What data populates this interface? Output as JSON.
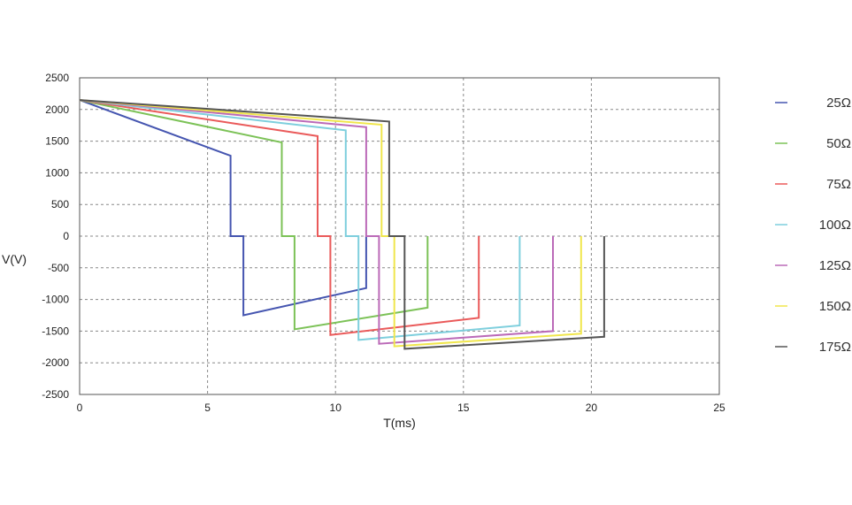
{
  "chart_data": {
    "type": "line",
    "title": "",
    "xlabel": "T(ms)",
    "ylabel": "V(V)",
    "xlim": [
      0,
      25
    ],
    "ylim": [
      -2500,
      2500
    ],
    "x_ticks": [
      "0",
      "5",
      "10",
      "15",
      "20",
      "25"
    ],
    "y_ticks": [
      "2500",
      "2000",
      "1500",
      "1000",
      "500",
      "0",
      "-500",
      "-1000",
      "-1500",
      "-2000",
      "-2500"
    ],
    "grid": true,
    "legend_position": "right",
    "series": [
      {
        "name": "25Ω",
        "color": "#4555b0",
        "x": [
          0,
          5.9,
          5.9,
          6.4,
          6.4,
          11.2,
          11.2
        ],
        "y": [
          2150,
          1270,
          0,
          0,
          -1250,
          -820,
          0
        ]
      },
      {
        "name": "50Ω",
        "color": "#7cc257",
        "x": [
          0,
          7.9,
          7.9,
          8.4,
          8.4,
          13.6,
          13.6
        ],
        "y": [
          2150,
          1480,
          0,
          0,
          -1470,
          -1130,
          0
        ]
      },
      {
        "name": "75Ω",
        "color": "#ea5a5a",
        "x": [
          0,
          9.3,
          9.3,
          9.8,
          9.8,
          15.6,
          15.6
        ],
        "y": [
          2150,
          1580,
          0,
          0,
          -1560,
          -1290,
          0
        ]
      },
      {
        "name": "100Ω",
        "color": "#7ecfdd",
        "x": [
          0,
          10.4,
          10.4,
          10.9,
          10.9,
          17.2,
          17.2
        ],
        "y": [
          2150,
          1670,
          0,
          0,
          -1640,
          -1410,
          0
        ]
      },
      {
        "name": "125Ω",
        "color": "#bb6ab8",
        "x": [
          0,
          11.2,
          11.2,
          11.7,
          11.7,
          18.5,
          18.5
        ],
        "y": [
          2150,
          1720,
          0,
          0,
          -1700,
          -1500,
          0
        ]
      },
      {
        "name": "150Ω",
        "color": "#f0e64c",
        "x": [
          0,
          11.8,
          11.8,
          12.3,
          12.3,
          19.6,
          19.6
        ],
        "y": [
          2150,
          1760,
          0,
          0,
          -1740,
          -1540,
          0
        ]
      },
      {
        "name": "175Ω",
        "color": "#555555",
        "x": [
          0,
          12.1,
          12.1,
          12.7,
          12.7,
          20.5,
          20.5
        ],
        "y": [
          2150,
          1810,
          0,
          0,
          -1780,
          -1590,
          0
        ]
      }
    ]
  }
}
